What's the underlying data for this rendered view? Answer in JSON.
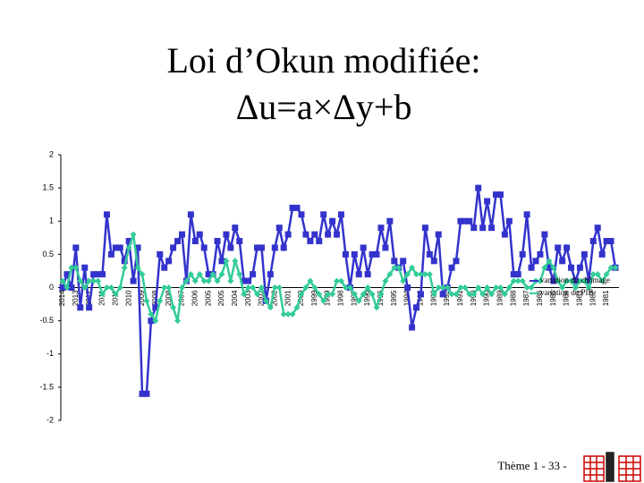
{
  "chart_data": {
    "type": "line",
    "title": "Loi d’Okun modifiée:",
    "subtitle": "Δu=a×Δy+b",
    "categories": [
      "2014",
      null,
      null,
      "2013",
      null,
      null,
      "2012",
      null,
      null,
      "2011",
      null,
      null,
      "2011",
      null,
      null,
      "2010",
      null,
      null,
      "2009",
      null,
      null,
      "2008",
      null,
      null,
      "2008",
      null,
      null,
      "2007",
      null,
      null,
      "2006",
      null,
      null,
      "2005",
      null,
      null,
      "2005",
      null,
      null,
      "2004",
      null,
      null,
      "2003",
      null,
      null,
      "2002",
      null,
      null,
      "2002",
      null,
      null,
      "2001",
      null,
      null,
      "2000",
      null,
      null,
      "1999",
      null,
      null,
      "1999",
      null,
      null,
      "1998",
      null,
      null,
      "1997",
      null,
      null,
      "1996",
      null,
      null,
      "1996",
      null,
      null,
      "1995",
      null,
      null,
      "1994",
      null,
      null,
      "1993",
      null,
      null,
      "1993",
      null,
      null,
      "1992",
      null,
      null,
      "1991",
      null,
      null,
      "1990",
      null,
      null,
      "1990",
      null,
      null,
      "1989",
      null,
      null,
      "1988",
      null,
      null,
      "1987",
      null,
      null,
      "1986",
      null,
      null,
      "1985",
      null,
      null,
      "1984",
      null,
      null,
      "1983",
      null,
      null,
      "1982",
      null,
      null,
      "1981",
      null,
      null
    ],
    "series": [
      {
        "name": "variation du chômage",
        "color": "#3333cc",
        "marker": "square",
        "values": [
          0,
          0.2,
          0,
          0.6,
          -0.3,
          0.3,
          -0.3,
          0.2,
          0.2,
          0.2,
          1.1,
          0.5,
          0.6,
          0.6,
          0.4,
          0.7,
          0.1,
          0.6,
          -1.6,
          -1.6,
          -0.5,
          -0.3,
          0.5,
          0.3,
          0.4,
          0.6,
          0.7,
          0.8,
          0.1,
          1.1,
          0.7,
          0.8,
          0.6,
          0.2,
          0.2,
          0.7,
          0.4,
          0.8,
          0.6,
          0.9,
          0.7,
          0.1,
          0.1,
          0.2,
          0.6,
          0.6,
          -0.2,
          0.2,
          0.6,
          0.9,
          0.6,
          0.8,
          1.2,
          1.2,
          1.1,
          0.8,
          0.7,
          0.8,
          0.7,
          1.1,
          0.8,
          1.0,
          0.8,
          1.1,
          0.5,
          0,
          0.5,
          0.2,
          0.6,
          0.2,
          0.5,
          0.5,
          0.9,
          0.6,
          1.0,
          0.4,
          0.3,
          0.4,
          0,
          -0.6,
          -0.3,
          -0.1,
          0.9,
          0.5,
          0.4,
          0.8,
          -0.1,
          0,
          0.3,
          0.4,
          1.0,
          1.0,
          1.0,
          0.9,
          1.5,
          0.9,
          1.3,
          0.9,
          1.4,
          1.4,
          0.8,
          1.0,
          0.2,
          0.2,
          0.5,
          1.1,
          0.3,
          0.4,
          0.5,
          0.8,
          0.3,
          0.1,
          0.6,
          0.4,
          0.6,
          0.3,
          0.1,
          0.3,
          0.5,
          0.1,
          0.7,
          0.9,
          0.5,
          0.7,
          0.7,
          0.3
        ]
      },
      {
        "name": "variation du PIB",
        "color": "#33cc99",
        "marker": "diamond",
        "values": [
          0.1,
          0,
          0.3,
          0.3,
          0.1,
          0,
          0.1,
          0.1,
          0.1,
          -0.1,
          0,
          0,
          -0.1,
          0,
          0.3,
          0.6,
          0.8,
          0.3,
          0.2,
          -0.2,
          -0.4,
          -0.5,
          -0.2,
          0,
          0,
          -0.3,
          -0.5,
          0,
          0.1,
          0.2,
          0.1,
          0.2,
          0.1,
          0.1,
          0.2,
          0.1,
          0.2,
          0.4,
          0.1,
          0.4,
          0.2,
          -0.1,
          0,
          0,
          -0.1,
          0,
          -0.2,
          -0.3,
          0,
          0,
          -0.4,
          -0.4,
          -0.4,
          -0.3,
          -0.1,
          0,
          0.1,
          0,
          -0.1,
          -0.2,
          -0.1,
          -0.1,
          0.1,
          0.1,
          0,
          0,
          -0.1,
          -0.2,
          -0.1,
          0,
          -0.1,
          -0.3,
          -0.1,
          0.1,
          0.2,
          0.3,
          0.3,
          0.1,
          0.2,
          0.3,
          0.2,
          0.2,
          0.2,
          0.2,
          -0.1,
          0,
          0,
          0,
          -0.1,
          -0.1,
          0,
          0,
          -0.1,
          -0.1,
          0,
          -0.1,
          0,
          -0.1,
          0,
          0,
          -0.1,
          0,
          0.1,
          0.1,
          0.1,
          0,
          0,
          0.1,
          0.1,
          0.3,
          0.4,
          0.3,
          0.1,
          0,
          0.1,
          0.1,
          0,
          0.1,
          0.1,
          0,
          0.2,
          0.2,
          0.1,
          0.2,
          0.3,
          0.3
        ]
      }
    ],
    "ylim": [
      -2,
      2
    ],
    "yticks": [
      2,
      1.5,
      1,
      0.5,
      0,
      -0.5,
      -1,
      -1.5,
      -2
    ],
    "grid": false,
    "legend": "right"
  },
  "footer": "Thème 1 - 33 -"
}
